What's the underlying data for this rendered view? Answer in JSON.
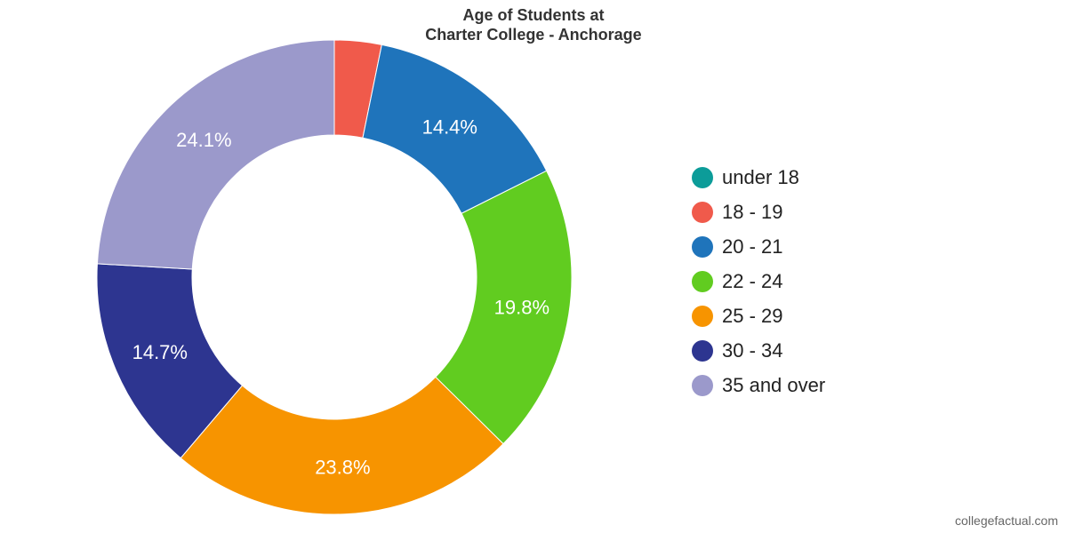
{
  "chart_data": {
    "type": "pie",
    "title_lines": [
      "Age of Students at",
      "Charter College - Anchorage"
    ],
    "categories": [
      "under 18",
      "18 - 19",
      "20 - 21",
      "22 - 24",
      "25 - 29",
      "30 - 34",
      "35 and over"
    ],
    "values": [
      0.0,
      3.2,
      14.4,
      19.8,
      23.8,
      14.7,
      24.1
    ],
    "data_labels": [
      "",
      "",
      "14.4%",
      "19.8%",
      "23.8%",
      "14.7%",
      "24.1%"
    ],
    "colors": [
      "#0c9c99",
      "#f05a4b",
      "#1f74bb",
      "#61cc20",
      "#f79400",
      "#2d3590",
      "#9b99cb"
    ],
    "donut": true,
    "legend_position": "right"
  },
  "credit": "collegefactual.com"
}
